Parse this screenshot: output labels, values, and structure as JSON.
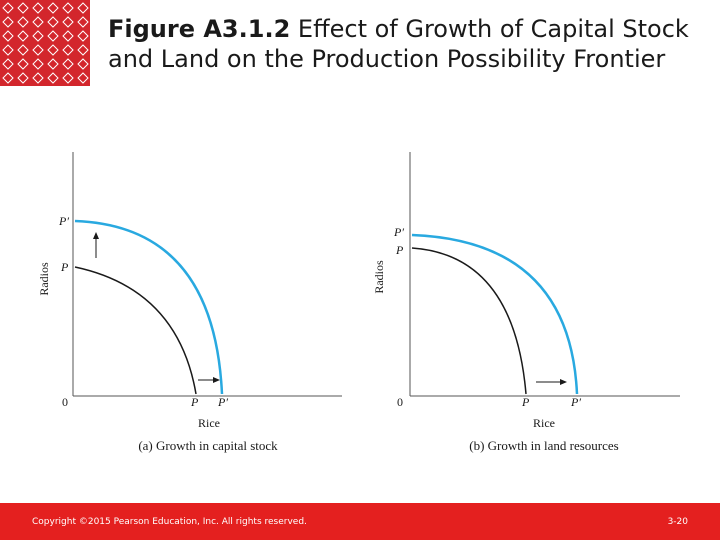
{
  "colors": {
    "frontier_new": "#29a9e0",
    "frontier_old": "#1a1a1a",
    "footer_bg": "#e4201f",
    "logo_bg": "#d3262c"
  },
  "logo": {
    "icon": "woven-pattern-logo"
  },
  "title": {
    "figure_number": "Figure A3.1.2",
    "line1_text": "Effect of Growth of Capital Stock",
    "line2_text": "and Land on the Production Possibility Frontier"
  },
  "panels": [
    {
      "y_axis_label": "Radios",
      "x_axis_label": "Rice",
      "origin_label": "0",
      "old_frontier_y_label": "P",
      "new_frontier_y_label": "P′",
      "old_frontier_x_label": "P",
      "new_frontier_x_label": "P′",
      "caption": "(a) Growth in capital stock"
    },
    {
      "y_axis_label": "Radios",
      "x_axis_label": "Rice",
      "origin_label": "0",
      "old_frontier_y_label": "P",
      "new_frontier_y_label": "P′",
      "old_frontier_x_label": "P",
      "new_frontier_x_label": "P′",
      "caption": "(b) Growth in land resources"
    }
  ],
  "footer": {
    "copyright": "Copyright ©2015 Pearson Education, Inc. All rights reserved.",
    "page_number": "3-20"
  }
}
